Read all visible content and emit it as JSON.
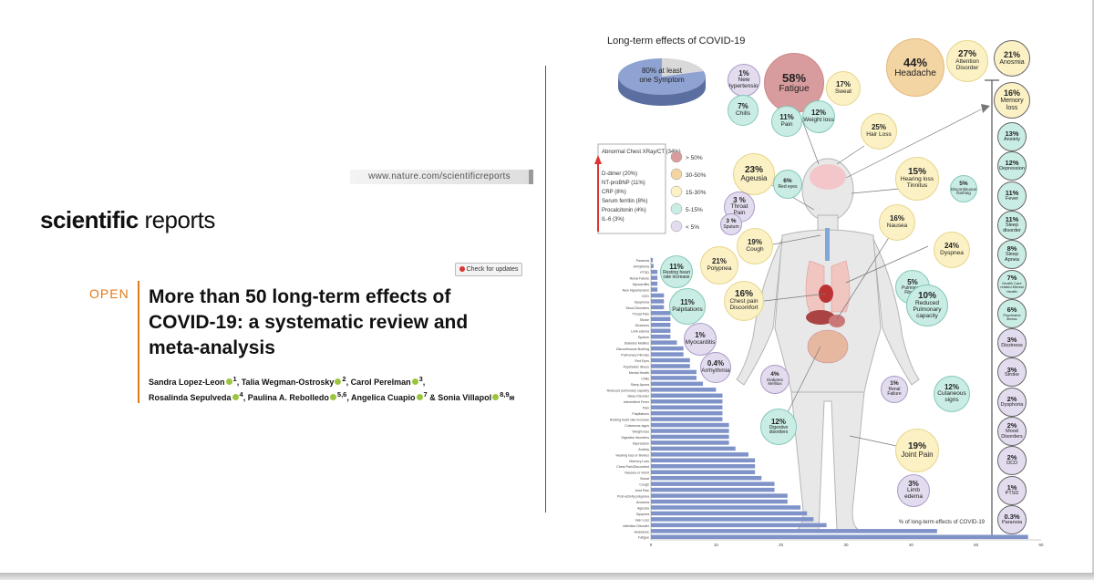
{
  "nature_url": "www.nature.com/scientificreports",
  "journal": {
    "bold": "scientific",
    "light": " reports"
  },
  "check_updates": "Check for updates",
  "open_label": "OPEN",
  "article_title": "More than 50 long-term effects of COVID-19: a systematic review and meta-analysis",
  "authors": [
    {
      "name": "Sandra Lopez-Leon",
      "aff": "1"
    },
    {
      "name": "Talia Wegman-Ostrosky",
      "aff": "2"
    },
    {
      "name": "Carol Perelman",
      "aff": "3"
    },
    {
      "name": "Rosalinda Sepulveda",
      "aff": "4"
    },
    {
      "name": "Paulina A. Rebolledo",
      "aff": "5,6"
    },
    {
      "name": "Angelica Cuapio",
      "aff": "7"
    },
    {
      "name": "Sonia Villapol",
      "aff": "8,9"
    }
  ],
  "figure": {
    "title": "Long-term effects of COVID-19",
    "pie": {
      "label": "80% at least one Symptom",
      "value": 80
    },
    "lab_box": {
      "items": [
        "Abnormal Chest XRay/CT (34%)",
        "D-dimer (20%)",
        "NT-proBNP (11%)",
        "CRP (8%)",
        "Serum ferritin (8%)",
        "Procalcitonin (4%)",
        "IL-6 (3%)"
      ]
    },
    "legend": [
      {
        "label": "> 50%",
        "color": "#d89c9e"
      },
      {
        "label": "30-50%",
        "color": "#f3d4a3"
      },
      {
        "label": "15-30%",
        "color": "#fbf1c4"
      },
      {
        "label": "5-15%",
        "color": "#c9ece4"
      },
      {
        "label": "< 5%",
        "color": "#e3dcef"
      }
    ],
    "bubbles": [
      {
        "pct": "1%",
        "label": "New Hypertension",
        "cls": "bub-purple"
      },
      {
        "pct": "58%",
        "label": "Fatigue",
        "cls": "bub-red"
      },
      {
        "pct": "17%",
        "label": "Sweat",
        "cls": "bub-yellow"
      },
      {
        "pct": "7%",
        "label": "Chills",
        "cls": "bub-teal"
      },
      {
        "pct": "11%",
        "label": "Pain",
        "cls": "bub-teal"
      },
      {
        "pct": "12%",
        "label": "Weight loss",
        "cls": "bub-teal"
      },
      {
        "pct": "44%",
        "label": "Headache",
        "cls": "bub-orange"
      },
      {
        "pct": "27%",
        "label": "Attention Disorder",
        "cls": "bub-yellow"
      },
      {
        "pct": "25%",
        "label": "Hair Loss",
        "cls": "bub-yellow"
      },
      {
        "pct": "23%",
        "label": "Ageusia",
        "cls": "bub-yellow"
      },
      {
        "pct": "6%",
        "label": "Red eyes",
        "cls": "bub-teal"
      },
      {
        "pct": "15%",
        "label": "Hearing loss Tinnitus",
        "cls": "bub-yellow"
      },
      {
        "pct": "5%",
        "label": "Discontinuous flushing",
        "cls": "bub-teal"
      },
      {
        "pct": "3 %",
        "label": "Throat Pain",
        "cls": "bub-purple"
      },
      {
        "pct": "3 %",
        "label": "Sputum",
        "cls": "bub-purple"
      },
      {
        "pct": "19%",
        "label": "Cough",
        "cls": "bub-yellow"
      },
      {
        "pct": "16%",
        "label": "Nausea",
        "cls": "bub-yellow"
      },
      {
        "pct": "24%",
        "label": "Dyspnea",
        "cls": "bub-yellow"
      },
      {
        "pct": "21%",
        "label": "Polypnea",
        "cls": "bub-yellow"
      },
      {
        "pct": "11%",
        "label": "Resting heart rate increase",
        "cls": "bub-teal"
      },
      {
        "pct": "5%",
        "label": "Pulmonary Fibrosis",
        "cls": "bub-teal"
      },
      {
        "pct": "11%",
        "label": "Palpitations",
        "cls": "bub-teal"
      },
      {
        "pct": "16%",
        "label": "Chest pain Discomfort",
        "cls": "bub-yellow"
      },
      {
        "pct": "10%",
        "label": "Reduced Pulmonary capacity",
        "cls": "bub-teal"
      },
      {
        "pct": "1%",
        "label": "Myocarditis",
        "cls": "bub-purple"
      },
      {
        "pct": "0.4%",
        "label": "Arrhythmia",
        "cls": "bub-purple"
      },
      {
        "pct": "4%",
        "label": "Diabetes Mellitus",
        "cls": "bub-purple"
      },
      {
        "pct": "1%",
        "label": "Renal Failure",
        "cls": "bub-purple"
      },
      {
        "pct": "12%",
        "label": "Cutaneous signs",
        "cls": "bub-teal"
      },
      {
        "pct": "12%",
        "label": "Digestive disorders",
        "cls": "bub-teal"
      },
      {
        "pct": "19%",
        "label": "Joint Pain",
        "cls": "bub-yellow"
      },
      {
        "pct": "3%",
        "label": "Limb edema",
        "cls": "bub-purple"
      }
    ],
    "column": [
      {
        "pct": "21%",
        "label": "Anosmia",
        "cls": "bub-yellow"
      },
      {
        "pct": "16%",
        "label": "Memory loss",
        "cls": "bub-yellow"
      },
      {
        "pct": "13%",
        "label": "Anxiety",
        "cls": "bub-teal"
      },
      {
        "pct": "12%",
        "label": "Depression",
        "cls": "bub-teal"
      },
      {
        "pct": "11%",
        "label": "Fever",
        "cls": "bub-teal"
      },
      {
        "pct": "11%",
        "label": "Sleep disorder",
        "cls": "bub-teal"
      },
      {
        "pct": "8%",
        "label": "Sleep Apnea",
        "cls": "bub-teal"
      },
      {
        "pct": "7%",
        "label": "Health Care related Mental Health",
        "cls": "bub-teal"
      },
      {
        "pct": "6%",
        "label": "Psychiatric illness",
        "cls": "bub-teal"
      },
      {
        "pct": "3%",
        "label": "Dizziness",
        "cls": "bub-purple"
      },
      {
        "pct": "3%",
        "label": "Stroke",
        "cls": "bub-purple"
      },
      {
        "pct": "2%",
        "label": "Dysphoria",
        "cls": "bub-purple"
      },
      {
        "pct": "2%",
        "label": "Mood Disorders",
        "cls": "bub-purple"
      },
      {
        "pct": "2%",
        "label": "OCD",
        "cls": "bub-purple"
      },
      {
        "pct": "1%",
        "label": "PTSD",
        "cls": "bub-purple"
      },
      {
        "pct": "0.3%",
        "label": "Paranoia",
        "cls": "bub-purple"
      }
    ]
  },
  "chart_data": {
    "type": "bar",
    "orientation": "horizontal",
    "title": "% of long-term effects of COVID-19",
    "xlim": [
      0,
      60
    ],
    "xticks": [
      "0",
      "10",
      "20",
      "30",
      "40",
      "50",
      "60"
    ],
    "categories": [
      "Paranoia",
      "Arrhythmia",
      "PTSD",
      "Renal Failure",
      "Myocarditis",
      "New Hypertension",
      "OCD",
      "Dysphoria",
      "Mood Disorders",
      "Throat Pain",
      "Stroke",
      "Dizziness",
      "Limb edema",
      "Sputum",
      "Diabetes Mellitus",
      "Discontinuous flushing",
      "Pulmonary Fibrosis",
      "Red Eyes",
      "Psychiatric illness",
      "Mental Health",
      "Chills",
      "Sleep Apnea",
      "Reduced pulmonary capacity",
      "Sleep Disorder",
      "Intermittent Fever",
      "Pain",
      "Palpitations",
      "Resting heart rate increase",
      "Cutaneous signs",
      "Weight loss",
      "Digestive disorders",
      "Depression",
      "Anxiety",
      "Hearing loss or tinnitus",
      "Memory Loss",
      "Chest Pain/Discomfort",
      "Nausea or Vomit",
      "Sweat",
      "Cough",
      "Joint Pain",
      "Post-activity polypnea",
      "Anosmia",
      "Ageusia",
      "Dyspnea",
      "Hair Loss",
      "Attention Disorder",
      "Headache",
      "Fatigue"
    ],
    "values": [
      0.3,
      0.4,
      1,
      1,
      1,
      1,
      2,
      2,
      2,
      3,
      3,
      3,
      3,
      3,
      4,
      5,
      5,
      6,
      6,
      7,
      7,
      8,
      10,
      11,
      11,
      11,
      11,
      11,
      12,
      12,
      12,
      12,
      13,
      15,
      16,
      16,
      16,
      17,
      19,
      19,
      21,
      21,
      23,
      24,
      25,
      27,
      44,
      58
    ]
  }
}
